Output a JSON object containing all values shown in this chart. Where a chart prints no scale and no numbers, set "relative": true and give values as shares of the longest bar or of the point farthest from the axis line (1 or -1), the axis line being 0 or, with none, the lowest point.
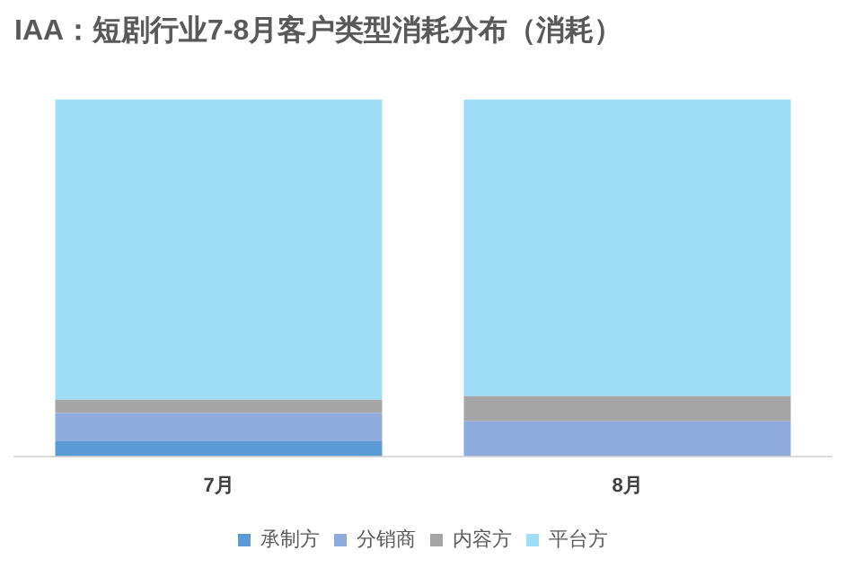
{
  "chart_data": {
    "type": "bar",
    "title": "IAA：短剧行业7-8月客户类型消耗分布（消耗）",
    "categories": [
      "7月",
      "8月"
    ],
    "relative": true,
    "stacked": true,
    "legend": "bottom",
    "grid": false,
    "series": [
      {
        "name": "承制方",
        "color": "#5b9bd5",
        "values": [
          0.042,
          0
        ]
      },
      {
        "name": "分销商",
        "color": "#8faadc",
        "values": [
          0.079,
          0.098
        ]
      },
      {
        "name": "内容方",
        "color": "#a5a5a5",
        "values": [
          0.037,
          0.07
        ]
      },
      {
        "name": "平台方",
        "color": "#9dddf5",
        "values": [
          0.842,
          0.832
        ]
      }
    ]
  }
}
